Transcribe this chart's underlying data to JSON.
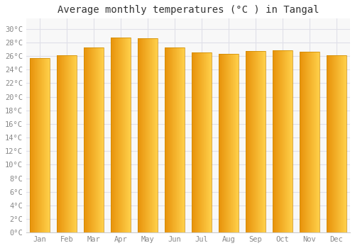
{
  "months": [
    "Jan",
    "Feb",
    "Mar",
    "Apr",
    "May",
    "Jun",
    "Jul",
    "Aug",
    "Sep",
    "Oct",
    "Nov",
    "Dec"
  ],
  "values": [
    25.7,
    26.1,
    27.2,
    28.7,
    28.6,
    27.2,
    26.5,
    26.3,
    26.7,
    26.8,
    26.6,
    26.1
  ],
  "title": "Average monthly temperatures (°C ) in Tangal",
  "bar_color_left": "#E8920A",
  "bar_color_right": "#FFD04A",
  "bar_color_mid": "#FFA800",
  "bar_edge_color": "#CC8800",
  "background_color": "#ffffff",
  "plot_bg_color": "#f8f8f8",
  "grid_color": "#e0e0e8",
  "ytick_labels": [
    "0°C",
    "2°C",
    "4°C",
    "6°C",
    "8°C",
    "10°C",
    "12°C",
    "14°C",
    "16°C",
    "18°C",
    "20°C",
    "22°C",
    "24°C",
    "26°C",
    "28°C",
    "30°C"
  ],
  "ytick_values": [
    0,
    2,
    4,
    6,
    8,
    10,
    12,
    14,
    16,
    18,
    20,
    22,
    24,
    26,
    28,
    30
  ],
  "ylim": [
    0,
    31.5
  ],
  "title_fontsize": 10,
  "tick_fontsize": 7.5,
  "bar_width": 0.75,
  "n_gradient_strips": 40
}
